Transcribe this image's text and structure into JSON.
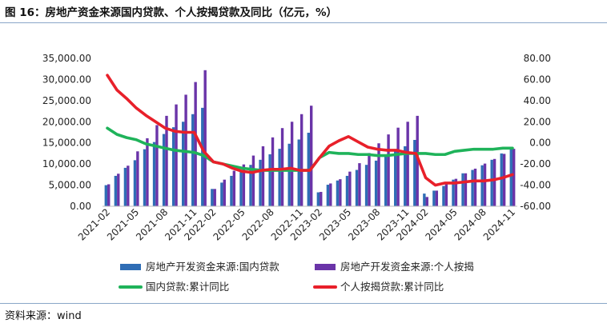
{
  "header": {
    "title": "图 16：房地产资金来源国内贷款、个人按揭贷款及同比（亿元，%）"
  },
  "footer": {
    "source": "资料来源：wind"
  },
  "chart_data": {
    "type": "bar",
    "categories": [
      "2021-02",
      "2021-03",
      "2021-04",
      "2021-05",
      "2021-06",
      "2021-07",
      "2021-08",
      "2021-09",
      "2021-10",
      "2021-11",
      "2021-12",
      "2022-02",
      "2022-03",
      "2022-04",
      "2022-05",
      "2022-06",
      "2022-07",
      "2022-08",
      "2022-09",
      "2022-10",
      "2022-11",
      "2022-12",
      "2023-02",
      "2023-03",
      "2023-04",
      "2023-05",
      "2023-06",
      "2023-07",
      "2023-08",
      "2023-09",
      "2023-10",
      "2023-11",
      "2023-12",
      "2024-02",
      "2024-03",
      "2024-04",
      "2024-05",
      "2024-06",
      "2024-07",
      "2024-08",
      "2024-09",
      "2024-10",
      "2024-11"
    ],
    "x_tick_labels": [
      "2021-02",
      "2021-05",
      "2021-08",
      "2021-11",
      "2022-02",
      "2022-05",
      "2022-08",
      "2022-11",
      "2023-02",
      "2023-05",
      "2023-08",
      "2023-11",
      "2024-02",
      "2024-05",
      "2024-08",
      "2024-11"
    ],
    "y_left": {
      "ylim": [
        0,
        35000
      ],
      "ticks": [
        "0.00",
        "5,000.00",
        "10,000.00",
        "15,000.00",
        "20,000.00",
        "25,000.00",
        "30,000.00",
        "35,000.00"
      ]
    },
    "y_right": {
      "ylim": [
        -60,
        80
      ],
      "ticks": [
        "-60.00",
        "-40.00",
        "-20.00",
        "0.00",
        "20.00",
        "40.00",
        "60.00",
        "80.00"
      ]
    },
    "series": [
      {
        "name": "房地产开发资金来源:国内贷款",
        "type": "bar",
        "axis": "left",
        "color": "#2f6db5",
        "values": [
          5000,
          7200,
          9100,
          10900,
          13500,
          15200,
          17100,
          18700,
          20000,
          21800,
          23300,
          4100,
          5600,
          7200,
          8500,
          9800,
          11000,
          12300,
          13600,
          14800,
          15800,
          17400,
          3300,
          5100,
          6100,
          7200,
          8600,
          9800,
          10800,
          12100,
          13400,
          14200,
          15700,
          3000,
          3700,
          4800,
          6300,
          7800,
          8600,
          9700,
          11000,
          12500,
          13700
        ]
      },
      {
        "name": "房地产开发资金来源:个人按揭",
        "type": "bar",
        "axis": "left",
        "color": "#6a34a8",
        "values": [
          5200,
          7700,
          9600,
          13000,
          16100,
          19200,
          21400,
          24100,
          26400,
          29400,
          32200,
          4100,
          6300,
          8400,
          9900,
          12000,
          14200,
          16300,
          18500,
          20000,
          21800,
          23800,
          3400,
          5400,
          6400,
          8200,
          10200,
          12600,
          14900,
          17000,
          18600,
          20000,
          21400,
          2200,
          3700,
          5200,
          6500,
          7800,
          8900,
          10100,
          11200,
          12400,
          13600
        ]
      },
      {
        "name": "国内贷款:累计同比",
        "type": "line",
        "axis": "right",
        "color": "#1fb35a",
        "values": [
          14,
          8,
          5,
          3,
          -1,
          -3,
          -5,
          -7,
          -8,
          -9,
          -12,
          -18,
          -20,
          -22,
          -24,
          -25,
          -26,
          -26,
          -26,
          -26,
          -26,
          -26,
          -14,
          -9,
          -10,
          -10,
          -11,
          -11,
          -12,
          -12,
          -11,
          -10,
          -10,
          -10,
          -11,
          -11,
          -8,
          -7,
          -6,
          -6,
          -6,
          -5,
          -5
        ]
      },
      {
        "name": "个人按揭贷款:累计同比",
        "type": "line",
        "axis": "right",
        "color": "#e8202a",
        "values": [
          64,
          50,
          42,
          33,
          26,
          20,
          14,
          11,
          10,
          10,
          -8,
          -18,
          -20,
          -24,
          -27,
          -28,
          -26,
          -25,
          -25,
          -24,
          -26,
          -26,
          -14,
          -3,
          2,
          6,
          1,
          -4,
          -6,
          -7,
          -7,
          -9,
          -10,
          -33,
          -40,
          -38,
          -38,
          -37,
          -36,
          -36,
          -35,
          -33,
          -30
        ]
      }
    ],
    "legend_position": "bottom"
  }
}
